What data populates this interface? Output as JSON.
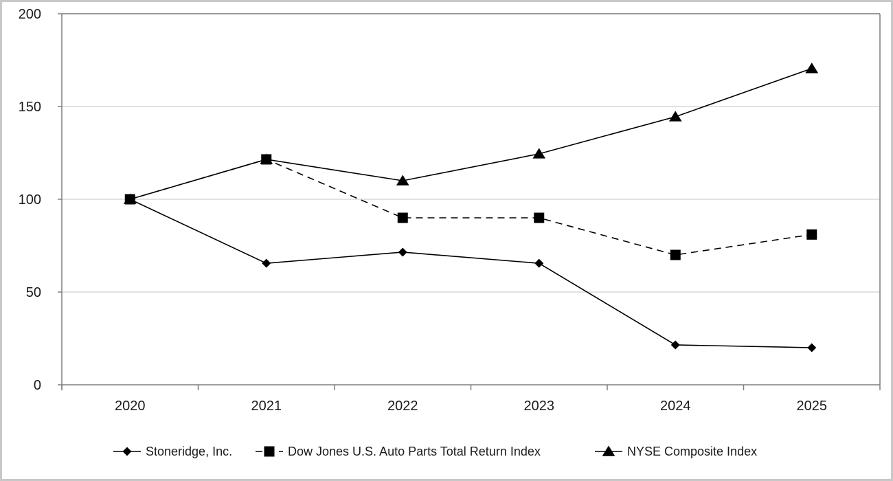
{
  "chart_data": {
    "type": "line",
    "title": "",
    "xlabel": "",
    "ylabel": "",
    "categories": [
      "2020",
      "2021",
      "2022",
      "2023",
      "2024",
      "2025"
    ],
    "ylim": [
      0,
      200
    ],
    "yticks": [
      "0",
      "50",
      "100",
      "150",
      "200"
    ],
    "grid": "horizontal",
    "legend_position": "bottom",
    "series": [
      {
        "name": "Stoneridge, Inc.",
        "marker": "diamond",
        "line_style": "solid",
        "values": [
          100,
          65.5,
          71.5,
          65.5,
          21.5,
          20
        ]
      },
      {
        "name": "Dow Jones U.S. Auto Parts Total Return Index",
        "marker": "square",
        "line_style": "dashed",
        "values": [
          100,
          121.5,
          90,
          90,
          70,
          81
        ]
      },
      {
        "name": "NYSE Composite Index",
        "marker": "triangle",
        "line_style": "solid",
        "values": [
          100,
          121.5,
          110,
          124.5,
          144.5,
          170.5
        ]
      }
    ],
    "colors": {
      "line": "#000000",
      "grid": "#d9d9d9",
      "axis": "#7f7f7f"
    }
  }
}
